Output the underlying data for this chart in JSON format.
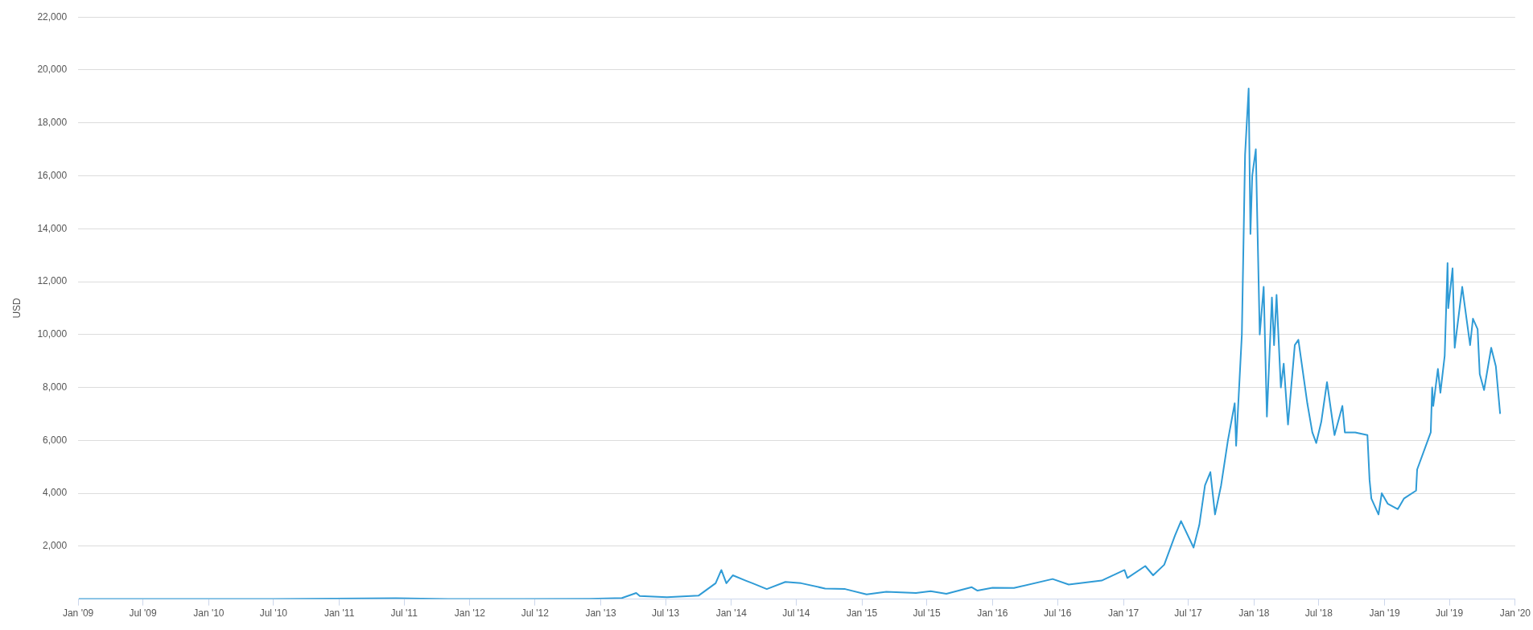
{
  "chart_data": {
    "type": "line",
    "ylabel": "USD",
    "grid": "y",
    "legend": false,
    "marker": "none",
    "line_style": "solid",
    "xlim": [
      "2009-01-01",
      "2020-01-01"
    ],
    "xticks": [
      {
        "value": "2009-01-01",
        "label": "Jan '09"
      },
      {
        "value": "2009-07-01",
        "label": "Jul '09"
      },
      {
        "value": "2010-01-01",
        "label": "Jan '10"
      },
      {
        "value": "2010-07-01",
        "label": "Jul '10"
      },
      {
        "value": "2011-01-01",
        "label": "Jan '11"
      },
      {
        "value": "2011-07-01",
        "label": "Jul '11"
      },
      {
        "value": "2012-01-01",
        "label": "Jan '12"
      },
      {
        "value": "2012-07-01",
        "label": "Jul '12"
      },
      {
        "value": "2013-01-01",
        "label": "Jan '13"
      },
      {
        "value": "2013-07-01",
        "label": "Jul '13"
      },
      {
        "value": "2014-01-01",
        "label": "Jan '14"
      },
      {
        "value": "2014-07-01",
        "label": "Jul '14"
      },
      {
        "value": "2015-01-01",
        "label": "Jan '15"
      },
      {
        "value": "2015-07-01",
        "label": "Jul '15"
      },
      {
        "value": "2016-01-01",
        "label": "Jan '16"
      },
      {
        "value": "2016-07-01",
        "label": "Jul '16"
      },
      {
        "value": "2017-01-01",
        "label": "Jan '17"
      },
      {
        "value": "2017-07-01",
        "label": "Jul '17"
      },
      {
        "value": "2018-01-01",
        "label": "Jan '18"
      },
      {
        "value": "2018-07-01",
        "label": "Jul '18"
      },
      {
        "value": "2019-01-01",
        "label": "Jan '19"
      },
      {
        "value": "2019-07-01",
        "label": "Jul '19"
      },
      {
        "value": "2020-01-01",
        "label": "Jan '20"
      }
    ],
    "ylim": [
      0,
      22000
    ],
    "yticks": [
      {
        "value": 0,
        "label": null
      },
      {
        "value": 2000,
        "label": "2,000"
      },
      {
        "value": 4000,
        "label": "4,000"
      },
      {
        "value": 6000,
        "label": "6,000"
      },
      {
        "value": 8000,
        "label": "8,000"
      },
      {
        "value": 10000,
        "label": "10,000"
      },
      {
        "value": 12000,
        "label": "12,000"
      },
      {
        "value": 14000,
        "label": "14,000"
      },
      {
        "value": 16000,
        "label": "16,000"
      },
      {
        "value": 18000,
        "label": "18,000"
      },
      {
        "value": 20000,
        "label": "20,000"
      },
      {
        "value": 22000,
        "label": "22,000"
      }
    ],
    "series": [
      {
        "color": "#2f9bd6",
        "x": [
          "2009-01-03",
          "2010-07-01",
          "2011-06-08",
          "2011-11-01",
          "2012-06-01",
          "2012-12-01",
          "2013-03-01",
          "2013-04-10",
          "2013-04-20",
          "2013-07-05",
          "2013-10-01",
          "2013-11-18",
          "2013-12-04",
          "2013-12-18",
          "2014-01-05",
          "2014-02-10",
          "2014-03-01",
          "2014-04-10",
          "2014-06-01",
          "2014-07-15",
          "2014-09-20",
          "2014-11-15",
          "2015-01-14",
          "2015-03-10",
          "2015-06-01",
          "2015-07-12",
          "2015-08-25",
          "2015-11-04",
          "2015-11-20",
          "2016-01-01",
          "2016-03-01",
          "2016-06-17",
          "2016-08-01",
          "2016-11-01",
          "2017-01-04",
          "2017-01-12",
          "2017-03-03",
          "2017-03-25",
          "2017-04-25",
          "2017-05-25",
          "2017-06-11",
          "2017-07-16",
          "2017-08-01",
          "2017-08-17",
          "2017-09-01",
          "2017-09-14",
          "2017-10-01",
          "2017-10-20",
          "2017-11-08",
          "2017-11-12",
          "2017-11-28",
          "2017-12-07",
          "2017-12-17",
          "2017-12-22",
          "2017-12-27",
          "2018-01-06",
          "2018-01-17",
          "2018-01-28",
          "2018-02-06",
          "2018-02-20",
          "2018-02-26",
          "2018-03-05",
          "2018-03-17",
          "2018-03-25",
          "2018-04-06",
          "2018-04-25",
          "2018-05-05",
          "2018-05-30",
          "2018-06-13",
          "2018-06-24",
          "2018-07-08",
          "2018-07-24",
          "2018-08-14",
          "2018-09-05",
          "2018-09-12",
          "2018-10-11",
          "2018-11-14",
          "2018-11-20",
          "2018-11-25",
          "2018-12-15",
          "2018-12-24",
          "2019-01-10",
          "2019-02-07",
          "2019-02-24",
          "2019-03-30",
          "2019-04-02",
          "2019-05-10",
          "2019-05-14",
          "2019-05-17",
          "2019-05-30",
          "2019-06-06",
          "2019-06-18",
          "2019-06-26",
          "2019-06-28",
          "2019-07-10",
          "2019-07-16",
          "2019-08-06",
          "2019-08-28",
          "2019-09-05",
          "2019-09-18",
          "2019-09-24",
          "2019-10-06",
          "2019-10-26",
          "2019-11-08",
          "2019-11-20"
        ],
        "values": [
          0,
          0,
          30,
          3,
          6,
          13,
          40,
          230,
          120,
          70,
          130,
          600,
          1100,
          600,
          900,
          700,
          600,
          380,
          650,
          600,
          400,
          380,
          180,
          280,
          230,
          300,
          200,
          450,
          320,
          430,
          420,
          760,
          550,
          700,
          1100,
          800,
          1250,
          900,
          1300,
          2400,
          2950,
          1950,
          2800,
          4300,
          4800,
          3200,
          4300,
          6000,
          7400,
          5800,
          10000,
          16800,
          19300,
          13800,
          16000,
          17000,
          10000,
          11800,
          6900,
          11400,
          9600,
          11500,
          8000,
          8900,
          6600,
          9600,
          9800,
          7400,
          6300,
          5900,
          6700,
          8200,
          6200,
          7300,
          6300,
          6300,
          6200,
          4500,
          3800,
          3200,
          4000,
          3600,
          3400,
          3800,
          4100,
          4900,
          6300,
          8000,
          7300,
          8700,
          7800,
          9200,
          12700,
          11000,
          12500,
          9500,
          11800,
          9600,
          10600,
          10200,
          8500,
          7900,
          9500,
          8800,
          7000
        ]
      }
    ]
  }
}
